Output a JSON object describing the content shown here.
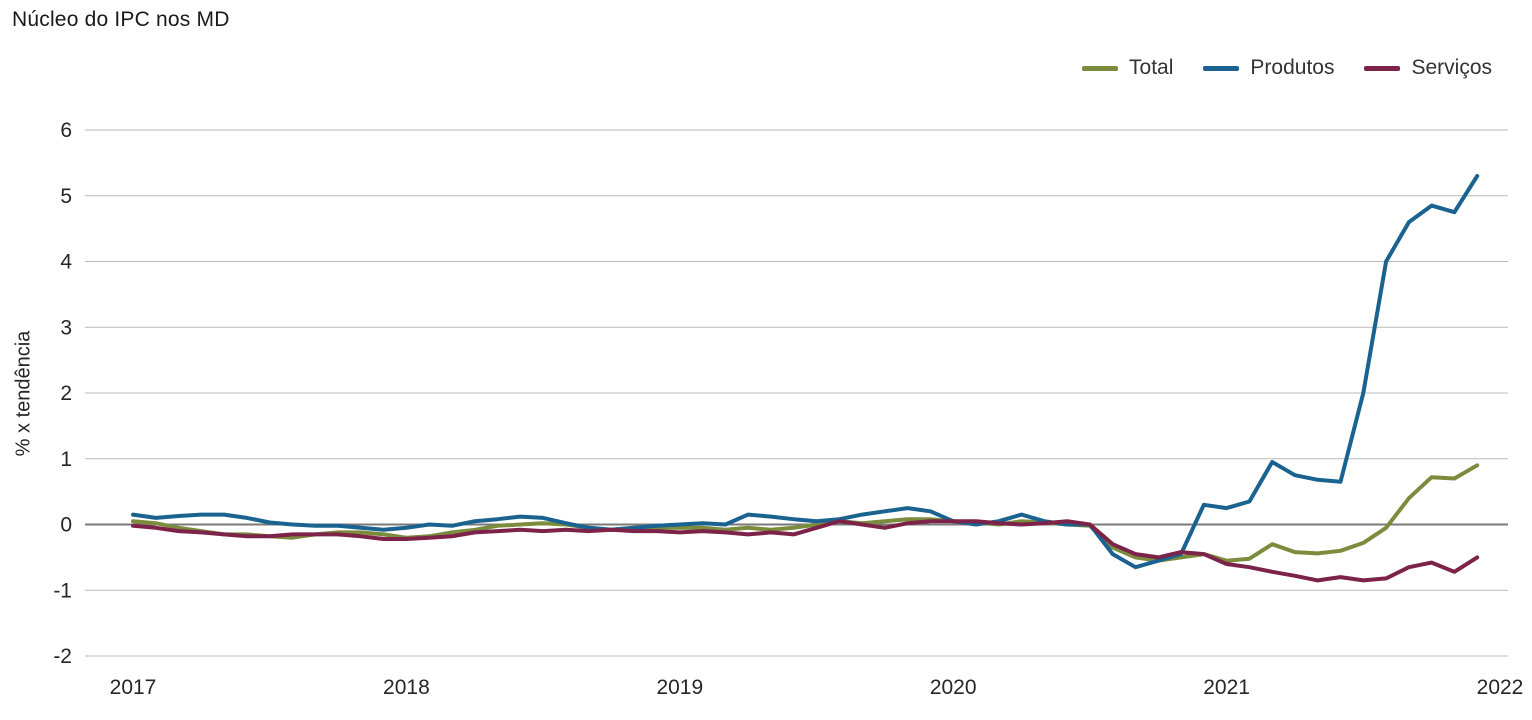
{
  "title": "Núcleo do IPC nos MD",
  "chart_data": {
    "type": "line",
    "title": "Núcleo do IPC nos MD",
    "xlabel": "",
    "ylabel": "% x tendência",
    "ylim": [
      -2,
      6
    ],
    "y_ticks": [
      6,
      5,
      4,
      3,
      2,
      1,
      0,
      -1,
      -2
    ],
    "x_ticks": [
      "2017",
      "2018",
      "2019",
      "2020",
      "2021",
      "2022"
    ],
    "points_per_year": 12,
    "grid": "horizontal",
    "legend_position": "top-right",
    "zero_line_color": "#7a7a7a",
    "grid_color": "#b9b9b9",
    "series": [
      {
        "name": "Total",
        "color": "#7c8c3d",
        "values": [
          0.05,
          0.02,
          -0.05,
          -0.1,
          -0.15,
          -0.15,
          -0.18,
          -0.2,
          -0.15,
          -0.12,
          -0.12,
          -0.15,
          -0.2,
          -0.18,
          -0.12,
          -0.08,
          -0.02,
          0.0,
          0.02,
          0.0,
          -0.05,
          -0.08,
          -0.05,
          -0.05,
          -0.05,
          -0.05,
          -0.08,
          -0.05,
          -0.08,
          -0.05,
          0.0,
          0.05,
          0.02,
          0.05,
          0.08,
          0.08,
          0.05,
          0.03,
          0.0,
          0.05,
          0.03,
          0.0,
          -0.02,
          -0.35,
          -0.5,
          -0.55,
          -0.5,
          -0.45,
          -0.55,
          -0.52,
          -0.3,
          -0.42,
          -0.44,
          -0.4,
          -0.28,
          -0.05,
          0.4,
          0.72,
          0.7,
          0.9
        ]
      },
      {
        "name": "Produtos",
        "color": "#1a628f",
        "values": [
          0.15,
          0.1,
          0.13,
          0.15,
          0.15,
          0.1,
          0.03,
          0.0,
          -0.02,
          -0.02,
          -0.05,
          -0.08,
          -0.05,
          0.0,
          -0.02,
          0.05,
          0.08,
          0.12,
          0.1,
          0.02,
          -0.05,
          -0.08,
          -0.05,
          -0.02,
          0.0,
          0.02,
          0.0,
          0.15,
          0.12,
          0.08,
          0.05,
          0.08,
          0.15,
          0.2,
          0.25,
          0.2,
          0.05,
          0.0,
          0.05,
          0.15,
          0.05,
          0.0,
          0.0,
          -0.45,
          -0.65,
          -0.55,
          -0.45,
          0.3,
          0.25,
          0.35,
          0.95,
          0.75,
          0.68,
          0.65,
          2.0,
          4.0,
          4.6,
          4.85,
          4.75,
          5.3
        ]
      },
      {
        "name": "Serviços",
        "color": "#7d2248",
        "values": [
          -0.02,
          -0.05,
          -0.1,
          -0.12,
          -0.15,
          -0.18,
          -0.18,
          -0.15,
          -0.15,
          -0.15,
          -0.18,
          -0.22,
          -0.22,
          -0.2,
          -0.18,
          -0.12,
          -0.1,
          -0.08,
          -0.1,
          -0.08,
          -0.1,
          -0.08,
          -0.1,
          -0.1,
          -0.12,
          -0.1,
          -0.12,
          -0.15,
          -0.12,
          -0.15,
          -0.05,
          0.05,
          0.0,
          -0.05,
          0.02,
          0.05,
          0.05,
          0.05,
          0.02,
          0.0,
          0.02,
          0.05,
          0.0,
          -0.3,
          -0.45,
          -0.5,
          -0.42,
          -0.45,
          -0.6,
          -0.65,
          -0.72,
          -0.78,
          -0.85,
          -0.8,
          -0.85,
          -0.82,
          -0.65,
          -0.58,
          -0.72,
          -0.5
        ]
      }
    ]
  }
}
